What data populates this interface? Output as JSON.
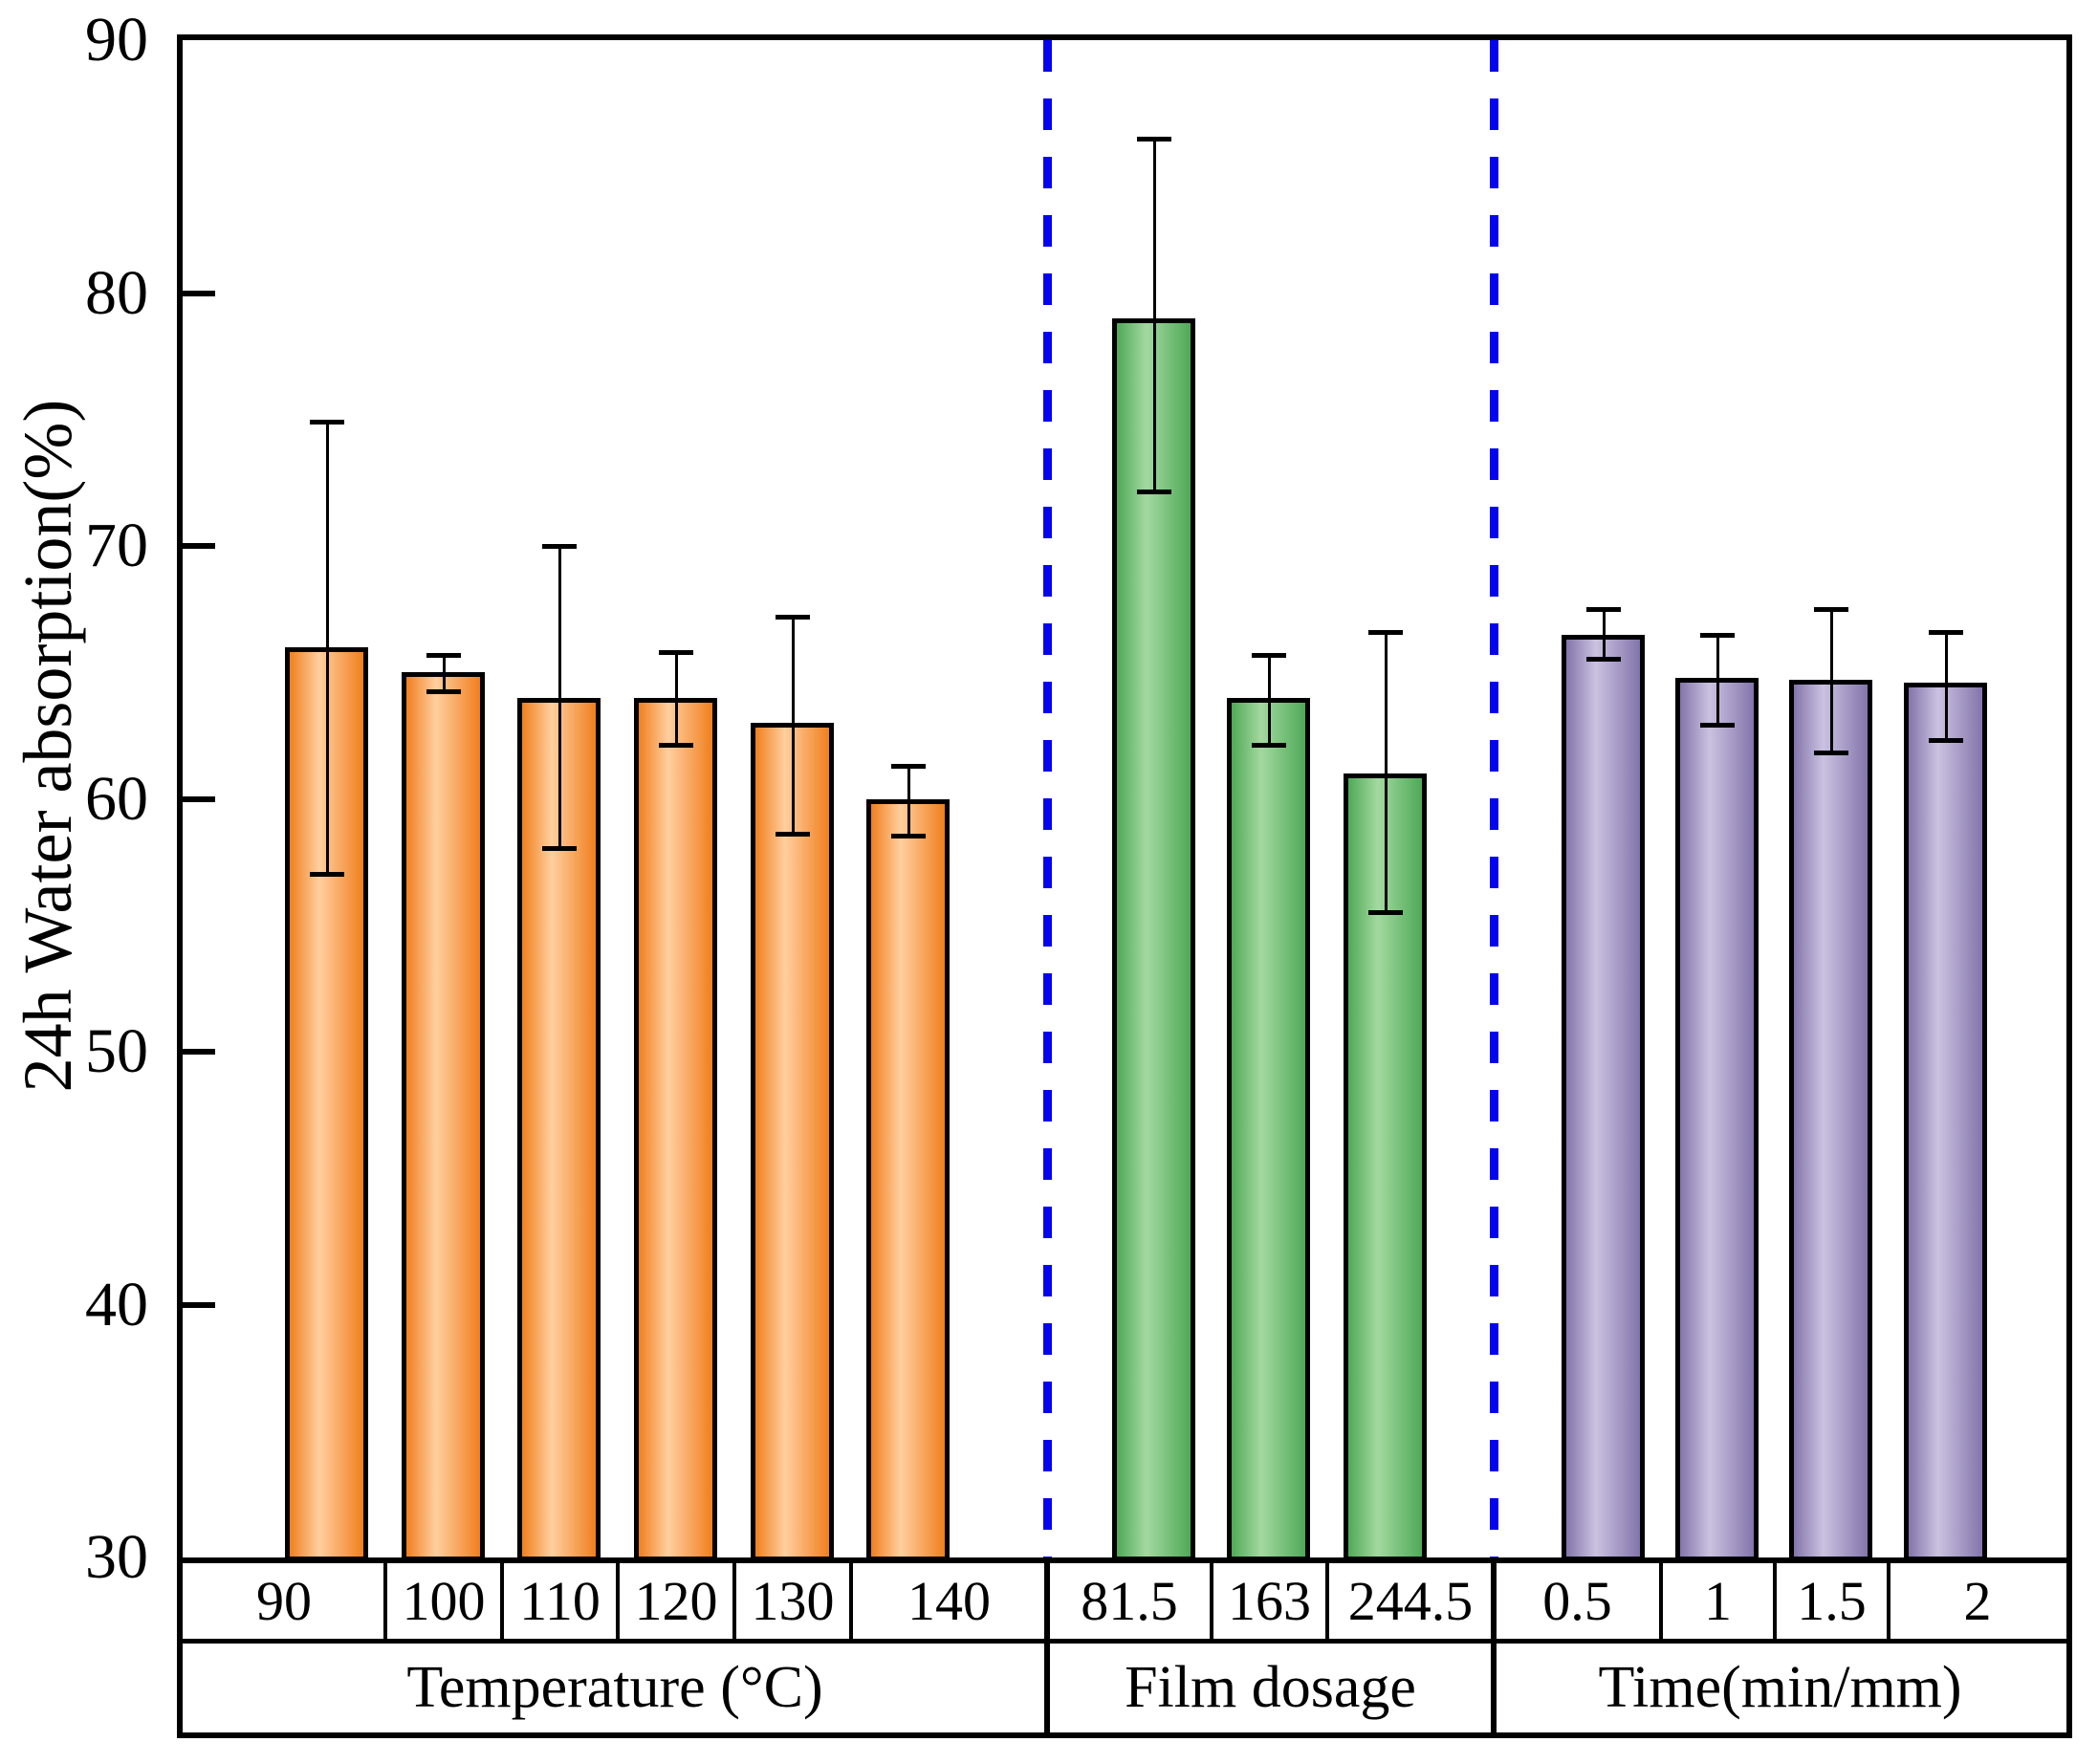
{
  "chart_data": {
    "type": "bar",
    "title": "",
    "ylabel": "24h Water absorption(%)",
    "xlabel": "",
    "ylim": [
      30,
      90
    ],
    "yticks": [
      90,
      80,
      70,
      60,
      50,
      40,
      30
    ],
    "grid": false,
    "legend": "none",
    "error_bars": true,
    "separator_line": {
      "color": "#0404EE",
      "style": "dashed"
    },
    "groups": [
      {
        "label": "Temperature (°C)",
        "bar_edge_color": "#F07F1E",
        "bar_mid_color": "#FFCF9F",
        "categories": [
          "90",
          "100",
          "110",
          "120",
          "130",
          "140"
        ],
        "values": [
          66.0,
          65.0,
          64.0,
          64.0,
          63.0,
          60.0
        ],
        "err_up": [
          8.9,
          0.7,
          6.0,
          1.8,
          4.2,
          1.3
        ],
        "err_down": [
          9.0,
          0.8,
          6.0,
          1.9,
          4.4,
          1.5
        ]
      },
      {
        "label": "Film dosage",
        "bar_edge_color": "#4FA957",
        "bar_mid_color": "#A3D9A0",
        "categories": [
          "81.5",
          "163",
          "244.5"
        ],
        "values": [
          79.0,
          64.0,
          61.0
        ],
        "err_up": [
          7.1,
          1.7,
          5.6
        ],
        "err_down": [
          6.9,
          1.9,
          5.5
        ]
      },
      {
        "label": "Time(min/mm)",
        "bar_edge_color": "#8375AB",
        "bar_mid_color": "#CBC2E1",
        "categories": [
          "0.5",
          "1",
          "1.5",
          "2"
        ],
        "values": [
          66.5,
          64.8,
          64.7,
          64.6
        ],
        "err_up": [
          1.0,
          1.7,
          2.8,
          2.0
        ],
        "err_down": [
          1.0,
          1.9,
          2.9,
          2.3
        ]
      }
    ]
  }
}
